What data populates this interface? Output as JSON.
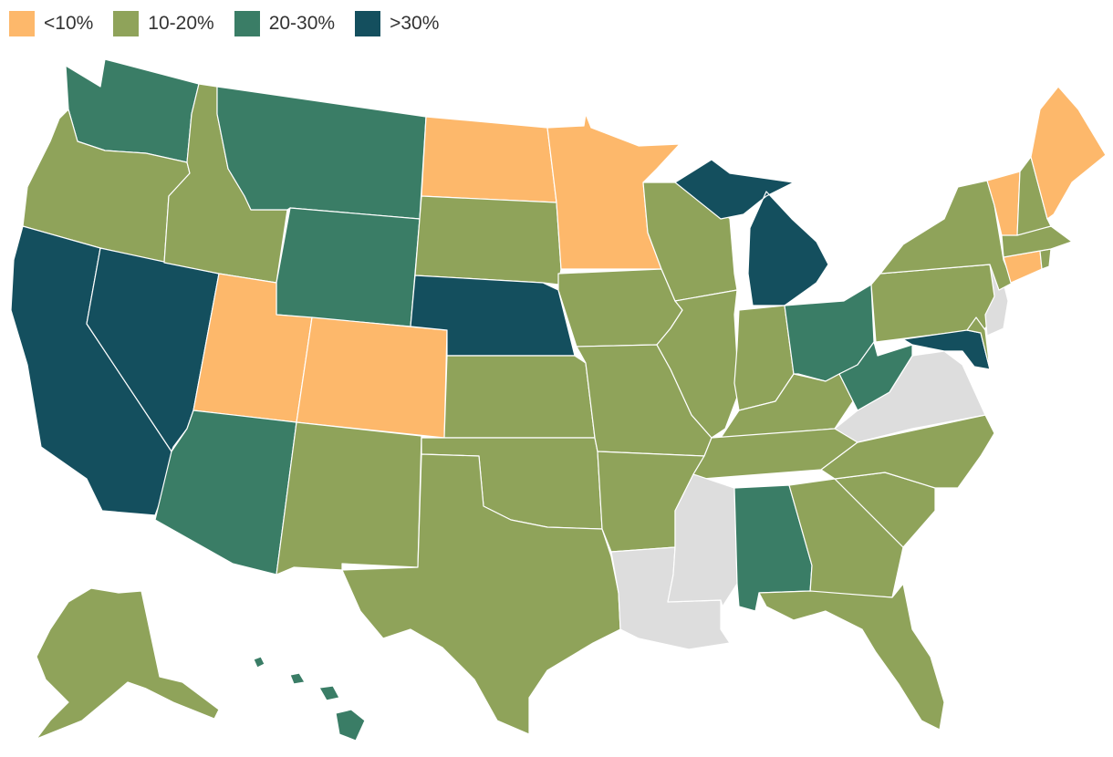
{
  "legend": [
    {
      "label": "<10%",
      "color": "#FDB86B"
    },
    {
      "label": "10-20%",
      "color": "#8FA35A"
    },
    {
      "label": "20-30%",
      "color": "#3A7D66"
    },
    {
      "label": ">30%",
      "color": "#144F5E"
    }
  ],
  "no_data_color": "#DDDDDD",
  "states": {
    "WA": "20-30%",
    "OR": "10-20%",
    "CA": ">30%",
    "NV": ">30%",
    "ID": "10-20%",
    "MT": "20-30%",
    "WY": "20-30%",
    "UT": "<10%",
    "CO": "<10%",
    "AZ": "20-30%",
    "NM": "10-20%",
    "ND": "<10%",
    "SD": "10-20%",
    "NE": ">30%",
    "KS": "10-20%",
    "OK": "10-20%",
    "TX": "10-20%",
    "MN": "<10%",
    "IA": "10-20%",
    "MO": "10-20%",
    "AR": "10-20%",
    "LA": "no-data",
    "WI": "10-20%",
    "IL": "10-20%",
    "MI": ">30%",
    "IN": "10-20%",
    "OH": "20-30%",
    "KY": "10-20%",
    "TN": "10-20%",
    "MS": "no-data",
    "AL": "20-30%",
    "GA": "10-20%",
    "FL": "10-20%",
    "SC": "10-20%",
    "NC": "10-20%",
    "VA": "no-data",
    "WV": "20-30%",
    "MD": ">30%",
    "DE": "10-20%",
    "NJ": "no-data",
    "PA": "10-20%",
    "NY": "10-20%",
    "CT": "<10%",
    "RI": "10-20%",
    "MA": "10-20%",
    "VT": "<10%",
    "NH": "10-20%",
    "ME": "<10%",
    "AK": "10-20%",
    "HI": "20-30%"
  }
}
